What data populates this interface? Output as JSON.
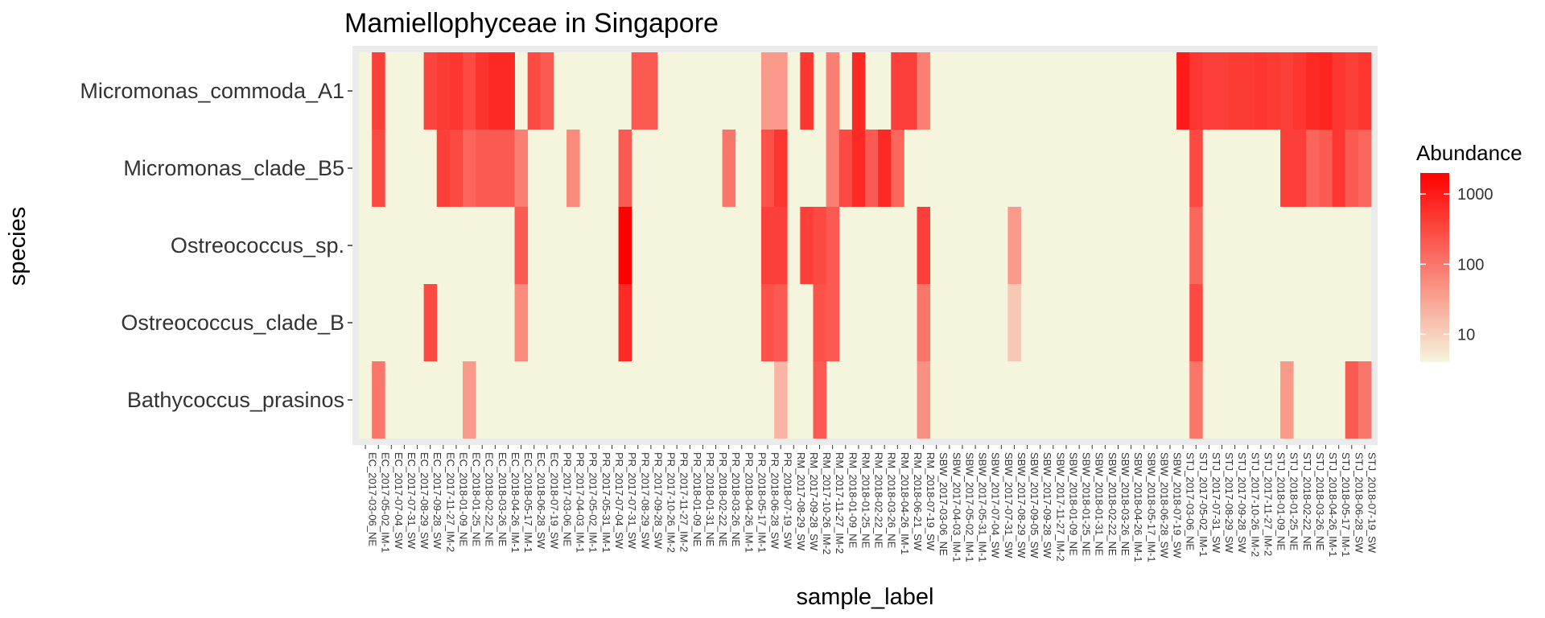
{
  "chart_data": {
    "type": "heatmap",
    "title": "Mamiellophyceae in Singapore",
    "xlabel": "sample_label",
    "ylabel": "species",
    "colors": {
      "low": "#f5f4dc",
      "high": "#ff0000",
      "panel": "#ebebeb"
    },
    "legend": {
      "title": "Abundance",
      "placement": "right",
      "scale": "log10",
      "breaks": [
        10,
        100,
        1000
      ],
      "labels": [
        "10",
        "100",
        "1000"
      ],
      "range": [
        4,
        2000
      ]
    },
    "species": [
      "Micromonas_commoda_A1",
      "Micromonas_clade_B5",
      "Ostreococcus_sp.",
      "Ostreococcus_clade_B",
      "Bathycoccus_prasinos"
    ],
    "samples": [
      "EC_2017-03-06_NE",
      "EC_2017-05-02_IM-1",
      "EC_2017-07-04_SW",
      "EC_2017-07-31_SW",
      "EC_2017-08-29_SW",
      "EC_2017-09-28_SW",
      "EC_2017-11-27_IM-2",
      "EC_2018-01-09_NE",
      "EC_2018-01-25_NE",
      "EC_2018-02-22_NE",
      "EC_2018-03-26_NE",
      "EC_2018-04-26_IM-1",
      "EC_2018-05-17_IM-1",
      "EC_2018-06-28_SW",
      "EC_2018-07-19_SW",
      "PR_2017-03-06_NE",
      "PR_2017-04-03_IM-1",
      "PR_2017-05-02_IM-1",
      "PR_2017-05-31_IM-1",
      "PR_2017-07-04_SW",
      "PR_2017-07-31_SW",
      "PR_2017-08-29_SW",
      "PR_2017-09-28_SW",
      "PR_2017-10-26_IM-2",
      "PR_2017-11-27_IM-2",
      "PR_2018-01-09_NE",
      "PR_2018-01-31_NE",
      "PR_2018-02-22_NE",
      "PR_2018-03-26_NE",
      "PR_2018-04-26_IM-1",
      "PR_2018-05-17_IM-1",
      "PR_2018-06-28_SW",
      "PR_2018-07-19_SW",
      "RM_2017-08-29_SW",
      "RM_2017-09-28_SW",
      "RM_2017-10-26_IM-2",
      "RM_2017-11-27_IM-2",
      "RM_2018-01-09_NE",
      "RM_2018-01-25_NE",
      "RM_2018-02-22_NE",
      "RM_2018-03-26_NE",
      "RM_2018-04-26_IM-1",
      "RM_2018-06-21_SW",
      "RM_2018-07-19_SW",
      "SBW_2017-03-06_NE",
      "SBW_2017-04-03_IM-1",
      "SBW_2017-05-02_IM-1",
      "SBW_2017-05-31_IM-1",
      "SBW_2017-07-04_SW",
      "SBW_2017-07-31_SW",
      "SBW_2017-08-29_SW",
      "SBW_2017-09-05_SW",
      "SBW_2017-09-28_SW",
      "SBW_2017-11-27_IM-2",
      "SBW_2018-01-09_NE",
      "SBW_2018-01-25_NE",
      "SBW_2018-01-31_NE",
      "SBW_2018-02-22_NE",
      "SBW_2018-03-26_NE",
      "SBW_2018-04-26_IM-1",
      "SBW_2018-05-17_IM-1",
      "SBW_2018-06-28_SW",
      "SBW_2018-07-19_SW",
      "STJ_2017-03-06_NE",
      "STJ_2017-05-02_IM-1",
      "STJ_2017-07-31_SW",
      "STJ_2017-08-29_SW",
      "STJ_2017-09-28_SW",
      "STJ_2017-10-26_IM-2",
      "STJ_2017-11-27_IM-2",
      "STJ_2018-01-09_NE",
      "STJ_2018-01-25_NE",
      "STJ_2018-02-22_NE",
      "STJ_2018-03-26_NE",
      "STJ_2018-04-26_IM-1",
      "STJ_2018-05-17_IM-1",
      "STJ_2018-06-28_SW",
      "STJ_2018-07-19_SW"
    ],
    "cells": [
      [
        "Micromonas_commoda_A1",
        "EC_2017-05-02_IM-1",
        400
      ],
      [
        "Micromonas_commoda_A1",
        "EC_2017-09-28_SW",
        350
      ],
      [
        "Micromonas_commoda_A1",
        "EC_2017-11-27_IM-2",
        450
      ],
      [
        "Micromonas_commoda_A1",
        "EC_2018-01-09_NE",
        500
      ],
      [
        "Micromonas_commoda_A1",
        "EC_2018-01-25_NE",
        300
      ],
      [
        "Micromonas_commoda_A1",
        "EC_2018-02-22_NE",
        550
      ],
      [
        "Micromonas_commoda_A1",
        "EC_2018-03-26_NE",
        700
      ],
      [
        "Micromonas_commoda_A1",
        "EC_2018-04-26_IM-1",
        700
      ],
      [
        "Micromonas_commoda_A1",
        "EC_2018-06-28_SW",
        300
      ],
      [
        "Micromonas_commoda_A1",
        "EC_2018-07-19_SW",
        200
      ],
      [
        "Micromonas_commoda_A1",
        "PR_2017-08-29_SW",
        200
      ],
      [
        "Micromonas_commoda_A1",
        "PR_2017-09-28_SW",
        200
      ],
      [
        "Micromonas_commoda_A1",
        "PR_2018-06-28_SW",
        40
      ],
      [
        "Micromonas_commoda_A1",
        "PR_2018-07-19_SW",
        40
      ],
      [
        "Micromonas_commoda_A1",
        "RM_2017-09-28_SW",
        500
      ],
      [
        "Micromonas_commoda_A1",
        "RM_2017-11-27_IM-2",
        80
      ],
      [
        "Micromonas_commoda_A1",
        "RM_2018-01-25_NE",
        700
      ],
      [
        "Micromonas_commoda_A1",
        "RM_2018-04-26_IM-1",
        400
      ],
      [
        "Micromonas_commoda_A1",
        "RM_2018-06-21_SW",
        400
      ],
      [
        "Micromonas_commoda_A1",
        "RM_2018-07-19_SW",
        80
      ],
      [
        "Micromonas_commoda_A1",
        "STJ_2017-03-06_NE",
        1000
      ],
      [
        "Micromonas_commoda_A1",
        "STJ_2017-05-02_IM-1",
        500
      ],
      [
        "Micromonas_commoda_A1",
        "STJ_2017-07-31_SW",
        400
      ],
      [
        "Micromonas_commoda_A1",
        "STJ_2017-08-29_SW",
        400
      ],
      [
        "Micromonas_commoda_A1",
        "STJ_2017-09-28_SW",
        450
      ],
      [
        "Micromonas_commoda_A1",
        "STJ_2017-10-26_IM-2",
        450
      ],
      [
        "Micromonas_commoda_A1",
        "STJ_2017-11-27_IM-2",
        500
      ],
      [
        "Micromonas_commoda_A1",
        "STJ_2018-01-09_NE",
        450
      ],
      [
        "Micromonas_commoda_A1",
        "STJ_2018-01-25_NE",
        400
      ],
      [
        "Micromonas_commoda_A1",
        "STJ_2018-02-22_NE",
        500
      ],
      [
        "Micromonas_commoda_A1",
        "STJ_2018-03-26_NE",
        700
      ],
      [
        "Micromonas_commoda_A1",
        "STJ_2018-04-26_IM-1",
        800
      ],
      [
        "Micromonas_commoda_A1",
        "STJ_2018-05-17_IM-1",
        500
      ],
      [
        "Micromonas_commoda_A1",
        "STJ_2018-06-28_SW",
        400
      ],
      [
        "Micromonas_commoda_A1",
        "STJ_2018-07-19_SW",
        500
      ],
      [
        "Micromonas_clade_B5",
        "EC_2017-05-02_IM-1",
        300
      ],
      [
        "Micromonas_clade_B5",
        "EC_2017-11-27_IM-2",
        400
      ],
      [
        "Micromonas_clade_B5",
        "EC_2018-01-09_NE",
        300
      ],
      [
        "Micromonas_clade_B5",
        "EC_2018-01-25_NE",
        150
      ],
      [
        "Micromonas_clade_B5",
        "EC_2018-02-22_NE",
        200
      ],
      [
        "Micromonas_clade_B5",
        "EC_2018-03-26_NE",
        200
      ],
      [
        "Micromonas_clade_B5",
        "EC_2018-04-26_IM-1",
        200
      ],
      [
        "Micromonas_clade_B5",
        "EC_2018-05-17_IM-1",
        80
      ],
      [
        "Micromonas_clade_B5",
        "PR_2017-04-03_IM-1",
        60
      ],
      [
        "Micromonas_clade_B5",
        "PR_2017-07-31_SW",
        200
      ],
      [
        "Micromonas_clade_B5",
        "PR_2018-03-26_NE",
        100
      ],
      [
        "Micromonas_clade_B5",
        "PR_2018-06-28_SW",
        250
      ],
      [
        "Micromonas_clade_B5",
        "PR_2018-07-19_SW",
        500
      ],
      [
        "Micromonas_clade_B5",
        "RM_2017-11-27_IM-2",
        80
      ],
      [
        "Micromonas_clade_B5",
        "RM_2018-01-09_NE",
        300
      ],
      [
        "Micromonas_clade_B5",
        "RM_2018-01-25_NE",
        700
      ],
      [
        "Micromonas_clade_B5",
        "RM_2018-02-22_NE",
        200
      ],
      [
        "Micromonas_clade_B5",
        "RM_2018-03-26_NE",
        700
      ],
      [
        "Micromonas_clade_B5",
        "RM_2018-04-26_IM-1",
        150
      ],
      [
        "Micromonas_clade_B5",
        "STJ_2017-05-02_IM-1",
        300
      ],
      [
        "Micromonas_clade_B5",
        "STJ_2018-01-25_NE",
        400
      ],
      [
        "Micromonas_clade_B5",
        "STJ_2018-02-22_NE",
        400
      ],
      [
        "Micromonas_clade_B5",
        "STJ_2018-03-26_NE",
        150
      ],
      [
        "Micromonas_clade_B5",
        "STJ_2018-04-26_IM-1",
        200
      ],
      [
        "Micromonas_clade_B5",
        "STJ_2018-05-17_IM-1",
        500
      ],
      [
        "Micromonas_clade_B5",
        "STJ_2018-06-28_SW",
        200
      ],
      [
        "Micromonas_clade_B5",
        "STJ_2018-07-19_SW",
        150
      ],
      [
        "Ostreococcus_sp.",
        "EC_2018-05-17_IM-1",
        200
      ],
      [
        "Ostreococcus_sp.",
        "PR_2017-07-31_SW",
        2000
      ],
      [
        "Ostreococcus_sp.",
        "PR_2018-06-28_SW",
        400
      ],
      [
        "Ostreococcus_sp.",
        "PR_2018-07-19_SW",
        400
      ],
      [
        "Ostreococcus_sp.",
        "RM_2017-09-28_SW",
        400
      ],
      [
        "Ostreococcus_sp.",
        "RM_2017-10-26_IM-2",
        300
      ],
      [
        "Ostreococcus_sp.",
        "RM_2017-11-27_IM-2",
        200
      ],
      [
        "Ostreococcus_sp.",
        "RM_2018-07-19_SW",
        400
      ],
      [
        "Ostreococcus_sp.",
        "SBW_2017-08-29_SW",
        40
      ],
      [
        "Ostreococcus_sp.",
        "STJ_2017-05-02_IM-1",
        150
      ],
      [
        "Ostreococcus_clade_B",
        "EC_2017-09-28_SW",
        300
      ],
      [
        "Ostreococcus_clade_B",
        "EC_2018-05-17_IM-1",
        60
      ],
      [
        "Ostreococcus_clade_B",
        "PR_2017-07-31_SW",
        700
      ],
      [
        "Ostreococcus_clade_B",
        "PR_2018-06-28_SW",
        250
      ],
      [
        "Ostreococcus_clade_B",
        "PR_2018-07-19_SW",
        200
      ],
      [
        "Ostreococcus_clade_B",
        "RM_2017-10-26_IM-2",
        250
      ],
      [
        "Ostreococcus_clade_B",
        "RM_2017-11-27_IM-2",
        200
      ],
      [
        "Ostreococcus_clade_B",
        "RM_2018-07-19_SW",
        100
      ],
      [
        "Ostreococcus_clade_B",
        "SBW_2017-08-29_SW",
        12
      ],
      [
        "Ostreococcus_clade_B",
        "STJ_2017-05-02_IM-1",
        300
      ],
      [
        "Bathycoccus_prasinos",
        "EC_2017-05-02_IM-1",
        100
      ],
      [
        "Bathycoccus_prasinos",
        "EC_2018-01-25_NE",
        40
      ],
      [
        "Bathycoccus_prasinos",
        "PR_2018-07-19_SW",
        20
      ],
      [
        "Bathycoccus_prasinos",
        "RM_2017-10-26_IM-2",
        200
      ],
      [
        "Bathycoccus_prasinos",
        "RM_2018-07-19_SW",
        50
      ],
      [
        "Bathycoccus_prasinos",
        "STJ_2017-05-02_IM-1",
        100
      ],
      [
        "Bathycoccus_prasinos",
        "STJ_2018-01-25_NE",
        40
      ],
      [
        "Bathycoccus_prasinos",
        "STJ_2018-06-28_SW",
        200
      ],
      [
        "Bathycoccus_prasinos",
        "STJ_2018-07-19_SW",
        100
      ]
    ]
  }
}
